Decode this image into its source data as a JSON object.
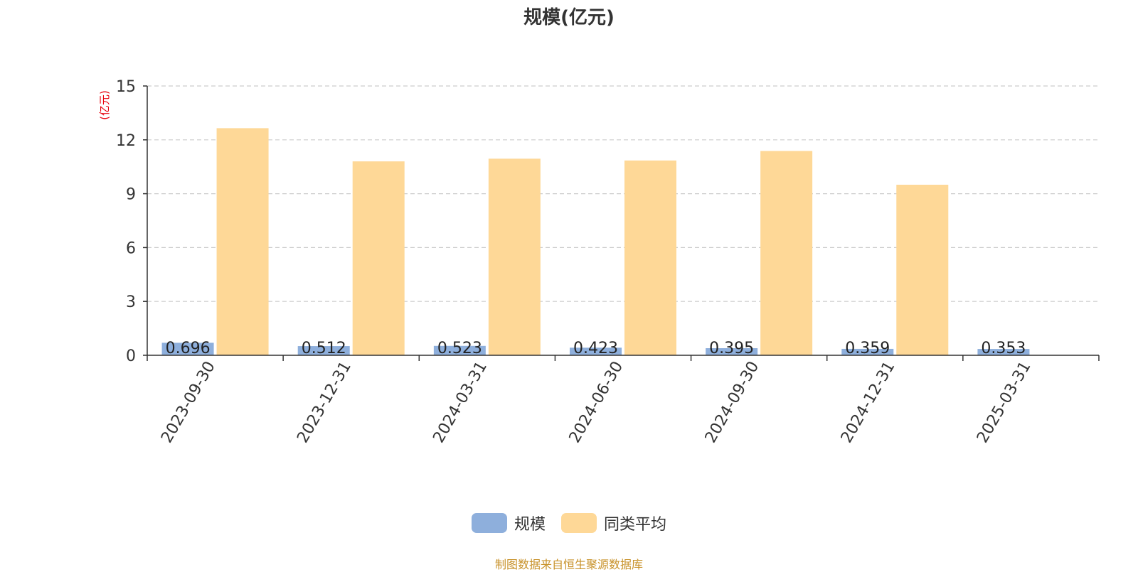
{
  "source_note": "制图数据来自恒生聚源数据库",
  "colors": {
    "series_scale": "#8eafdc",
    "series_peer_avg": "#fed897",
    "axis": "#333333",
    "grid": "#cccccc",
    "unit_label": "#e8000b",
    "source_note": "#c8922a"
  },
  "chart_data": {
    "type": "bar",
    "title": "规模(亿元)",
    "ylabel": "(亿元)",
    "xlabel": "",
    "categories": [
      "2023-09-30",
      "2023-12-31",
      "2024-03-31",
      "2024-06-30",
      "2024-09-30",
      "2024-12-31",
      "2025-03-31"
    ],
    "series": [
      {
        "name": "规模",
        "values": [
          0.696,
          0.512,
          0.523,
          0.423,
          0.395,
          0.359,
          0.353
        ],
        "value_labels": [
          "0.696",
          "0.512",
          "0.523",
          "0.423",
          "0.395",
          "0.359",
          "0.353"
        ]
      },
      {
        "name": "同类平均",
        "values": [
          12.65,
          10.8,
          10.95,
          10.85,
          11.38,
          9.5,
          null
        ]
      }
    ],
    "ylim": [
      0,
      15
    ],
    "yticks": [
      0,
      3,
      6,
      9,
      12,
      15
    ],
    "grid": true,
    "legend_position": "bottom-center"
  }
}
